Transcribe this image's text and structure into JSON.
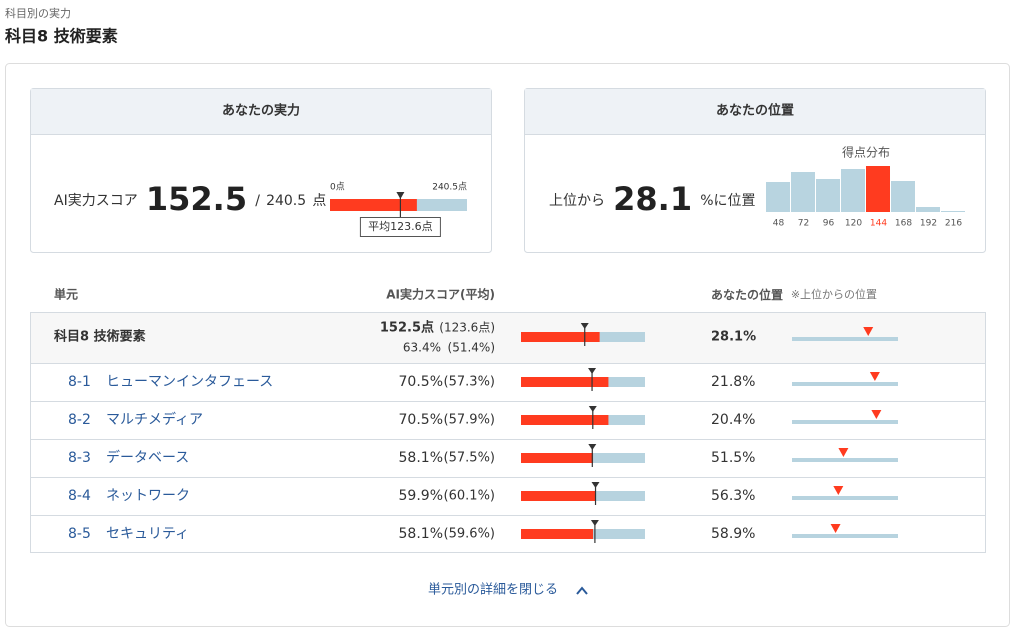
{
  "header": {
    "breadcrumb": "科目別の実力",
    "title": "科目8 技術要素"
  },
  "score_card": {
    "title": "あなたの実力",
    "label": "AI実力スコア",
    "score": 152.5,
    "separator": "/",
    "max": 240.5,
    "unit": "点",
    "scale_min_label": "0点",
    "scale_max_label": "240.5点",
    "average": 123.6,
    "average_label": "平均123.6点"
  },
  "position_card": {
    "title": "あなたの位置",
    "prefix": "上位から",
    "value": 28.1,
    "suffix": "%に位置",
    "distribution": {
      "title": "得点分布",
      "categories": [
        48,
        72,
        96,
        120,
        144,
        168,
        192,
        216
      ],
      "values": [
        30,
        40,
        33,
        43,
        46,
        31,
        5,
        1
      ],
      "highlight": 4,
      "color": "#b8d4e0",
      "highlight_color": "#ff3b1f"
    }
  },
  "table": {
    "headers": {
      "unit": "単元",
      "score": "AI実力スコア(平均)",
      "position": "あなたの位置",
      "position_note": "※上位からの位置"
    },
    "summary": {
      "name": "科目8 技術要素",
      "points_label": "152.5点",
      "avg_points_label": "(123.6点)",
      "score": 63.4,
      "score_label": "63.4%",
      "average": 51.4,
      "average_label": "(51.4%)",
      "position": 28.1,
      "position_label": "28.1%"
    },
    "rows": [
      {
        "code": "8-1",
        "name": "ヒューマンインタフェース",
        "score": 70.5,
        "score_label": "70.5%",
        "average": 57.3,
        "average_label": "(57.3%)",
        "position": 21.8,
        "position_label": "21.8%"
      },
      {
        "code": "8-2",
        "name": "マルチメディア",
        "score": 70.5,
        "score_label": "70.5%",
        "average": 57.9,
        "average_label": "(57.9%)",
        "position": 20.4,
        "position_label": "20.4%"
      },
      {
        "code": "8-3",
        "name": "データベース",
        "score": 58.1,
        "score_label": "58.1%",
        "average": 57.5,
        "average_label": "(57.5%)",
        "position": 51.5,
        "position_label": "51.5%"
      },
      {
        "code": "8-4",
        "name": "ネットワーク",
        "score": 59.9,
        "score_label": "59.9%",
        "average": 60.1,
        "average_label": "(60.1%)",
        "position": 56.3,
        "position_label": "56.3%"
      },
      {
        "code": "8-5",
        "name": "セキュリティ",
        "score": 58.1,
        "score_label": "58.1%",
        "average": 59.6,
        "average_label": "(59.6%)",
        "position": 58.9,
        "position_label": "58.9%"
      }
    ]
  },
  "footer": {
    "toggle": "単元別の詳細を閉じる"
  }
}
